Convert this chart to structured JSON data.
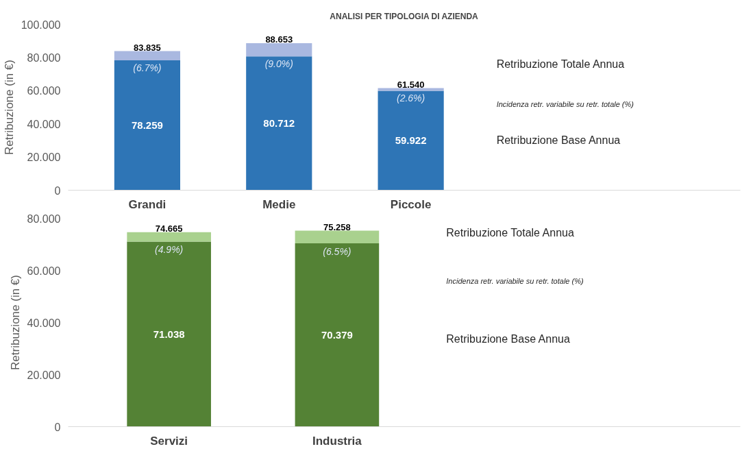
{
  "chart_data": [
    {
      "type": "bar",
      "title": "ANALISI PER TIPOLOGIA DI AZIENDA",
      "ylabel": "Retribuzione (in €)",
      "categories": [
        "Grandi",
        "Medie",
        "Piccole"
      ],
      "stacked": true,
      "grid": false,
      "ylim": [
        0,
        100
      ],
      "yticks": [
        {
          "value": 0,
          "label": "0"
        },
        {
          "value": 20,
          "label": "20.000"
        },
        {
          "value": 40,
          "label": "40.000"
        },
        {
          "value": 60,
          "label": "60.000"
        },
        {
          "value": 80,
          "label": "80.000"
        },
        {
          "value": 100,
          "label": "100.000"
        }
      ],
      "series": [
        {
          "color": "#2e75b6",
          "values": [
            78.259,
            80.712,
            59.922
          ],
          "value_labels": [
            "78.259",
            "80.712",
            "59.922"
          ]
        },
        {
          "color": "#a9b8e0",
          "values": [
            5.576,
            7.941,
            1.618
          ]
        }
      ],
      "totals": [
        "83.835",
        "88.653",
        "61.540"
      ],
      "annotations": [
        {
          "text": "(6.7%)",
          "x": "Grandi",
          "y": 78.259
        },
        {
          "text": "(9.0%)",
          "x": "Medie",
          "y": 80.712
        },
        {
          "text": "(2.6%)",
          "x": "Piccole",
          "y": 59.922
        },
        "Retribuzione Totale Annua",
        "Incidenza retr. variabile su retr. totale (%)",
        "Retribuzione Base Annua"
      ]
    },
    {
      "type": "bar",
      "ylabel": "Retribuzione (in €)",
      "categories": [
        "Servizi",
        "Industria"
      ],
      "stacked": true,
      "grid": false,
      "ylim": [
        0,
        80
      ],
      "yticks": [
        {
          "value": 0,
          "label": "0"
        },
        {
          "value": 20,
          "label": "20.000"
        },
        {
          "value": 40,
          "label": "40.000"
        },
        {
          "value": 60,
          "label": "60.000"
        },
        {
          "value": 80,
          "label": "80.000"
        }
      ],
      "series": [
        {
          "color": "#548235",
          "values": [
            71.038,
            70.379
          ],
          "value_labels": [
            "71.038",
            "70.379"
          ]
        },
        {
          "color": "#a9d18e",
          "values": [
            3.627,
            4.879
          ]
        }
      ],
      "totals": [
        "74.665",
        "75.258"
      ],
      "annotations": [
        {
          "text": "(4.9%)",
          "x": "Servizi",
          "y": 71.038
        },
        {
          "text": "(6.5%)",
          "x": "Industria",
          "y": 70.379
        },
        "Retribuzione Totale Annua",
        "Incidenza retr. variabile su retr. totale (%)",
        "Retribuzione Base Annua"
      ]
    }
  ]
}
